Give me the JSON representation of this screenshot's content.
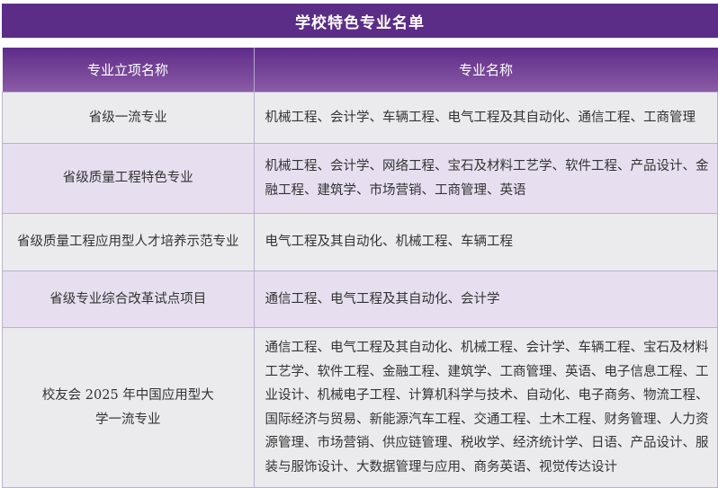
{
  "title": "学校特色专业名单",
  "headers": [
    "专业立项名称",
    "专业名称"
  ],
  "rows": [
    {
      "name": "省级一流专业",
      "majors": "机械工程、会计学、车辆工程、电气工程及其自动化、通信工程、工商管理"
    },
    {
      "name": "省级质量工程特色专业",
      "majors": "机械工程、会计学、网络工程、宝石及材料工艺学、软件工程、产品设计、金融工程、建筑学、市场营销、工商管理、英语"
    },
    {
      "name": "省级质量工程应用型人才培养示范专业",
      "majors": "电气工程及其自动化、机械工程、车辆工程"
    },
    {
      "name": "省级专业综合改革试点项目",
      "majors": "通信工程、电气工程及其自动化、会计学"
    },
    {
      "name": "校友会 2025 年中国应用型大学一流专业",
      "majors": "通信工程、电气工程及其自动化、机械工程、会计学、车辆工程、宝石及材料工艺学、软件工程、金融工程、建筑学、工商管理、英语、电子信息工程、工业设计、机械电子工程、计算机科学与技术、自动化、电子商务、物流工程、国际经济与贸易、新能源汽车工程、交通工程、土木工程、财务管理、人力资源管理、市场营销、供应链管理、税收学、经济统计学、日语、产品设计、服装与服饰设计、大数据管理与应用、商务英语、视觉传达设计"
    }
  ],
  "colors": {
    "title_bg": "#5b2d87",
    "row_gray": "#ebebed",
    "row_lavender": "#e7deef"
  }
}
